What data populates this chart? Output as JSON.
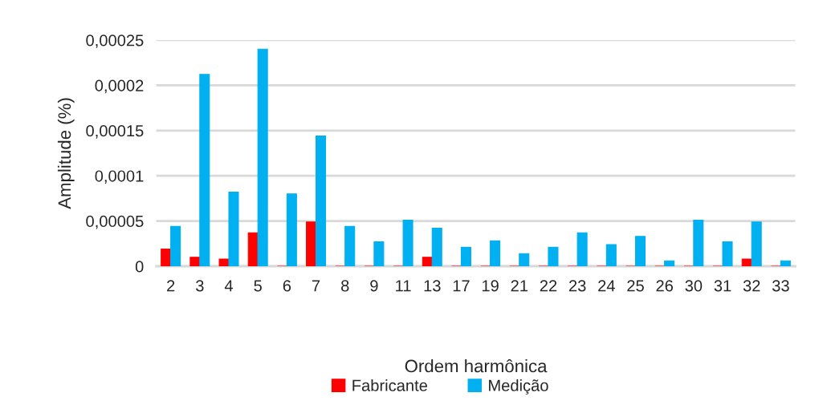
{
  "chart_data": {
    "type": "bar",
    "xlabel": "Ordem harmônica",
    "ylabel": "Amplitude (%)",
    "categories": [
      "2",
      "3",
      "4",
      "5",
      "6",
      "7",
      "8",
      "9",
      "11",
      "13",
      "17",
      "19",
      "21",
      "22",
      "23",
      "24",
      "25",
      "26",
      "30",
      "31",
      "32",
      "33"
    ],
    "series": [
      {
        "name": "Fabricante",
        "color": "#ff0000",
        "values": [
          1.9e-05,
          1e-05,
          8e-06,
          3.7e-05,
          0,
          4.9e-05,
          0,
          0,
          0,
          1e-05,
          0,
          0,
          0,
          0,
          0,
          0,
          0,
          0,
          0,
          0,
          8e-06,
          0
        ]
      },
      {
        "name": "Medição",
        "color": "#00b0f0",
        "values": [
          4.4e-05,
          0.000212,
          8.2e-05,
          0.00024,
          8e-05,
          0.000144,
          4.4e-05,
          2.7e-05,
          5.1e-05,
          4.2e-05,
          2.1e-05,
          2.8e-05,
          1.4e-05,
          2.1e-05,
          3.7e-05,
          2.4e-05,
          3.3e-05,
          6e-06,
          5.1e-05,
          2.7e-05,
          4.9e-05,
          6e-06
        ]
      }
    ],
    "ylim": [
      0,
      0.00025
    ],
    "yticks": [
      0,
      {
        "value": 5e-05,
        "label": "0,00005"
      },
      {
        "value": 0.0001,
        "label": "0,0001"
      },
      {
        "value": 0.00015,
        "label": "0,00015"
      },
      {
        "value": 0.0002,
        "label": "0,0002"
      },
      {
        "value": 0.00025,
        "label": "0,00025"
      }
    ],
    "grid": "y",
    "legend": "bottom"
  }
}
